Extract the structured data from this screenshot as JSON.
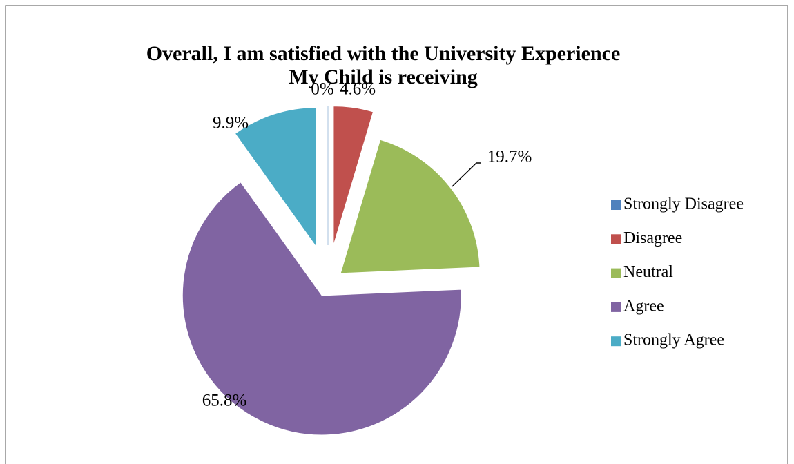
{
  "chart_data": {
    "type": "pie",
    "title": [
      "Overall, I am satisfied with the University Experience",
      "My Child is receiving"
    ],
    "categories": [
      "Strongly Disagree",
      "Disagree",
      "Neutral",
      "Agree",
      "Strongly Agree"
    ],
    "values": [
      0,
      4.6,
      19.7,
      65.8,
      9.9
    ],
    "value_labels": [
      "0%",
      "4.6%",
      "19.7%",
      "65.8%",
      "9.9%"
    ],
    "colors": [
      "#4f81bd",
      "#c0504d",
      "#9bbb59",
      "#8064a2",
      "#4bacc6"
    ],
    "legend": "right"
  }
}
